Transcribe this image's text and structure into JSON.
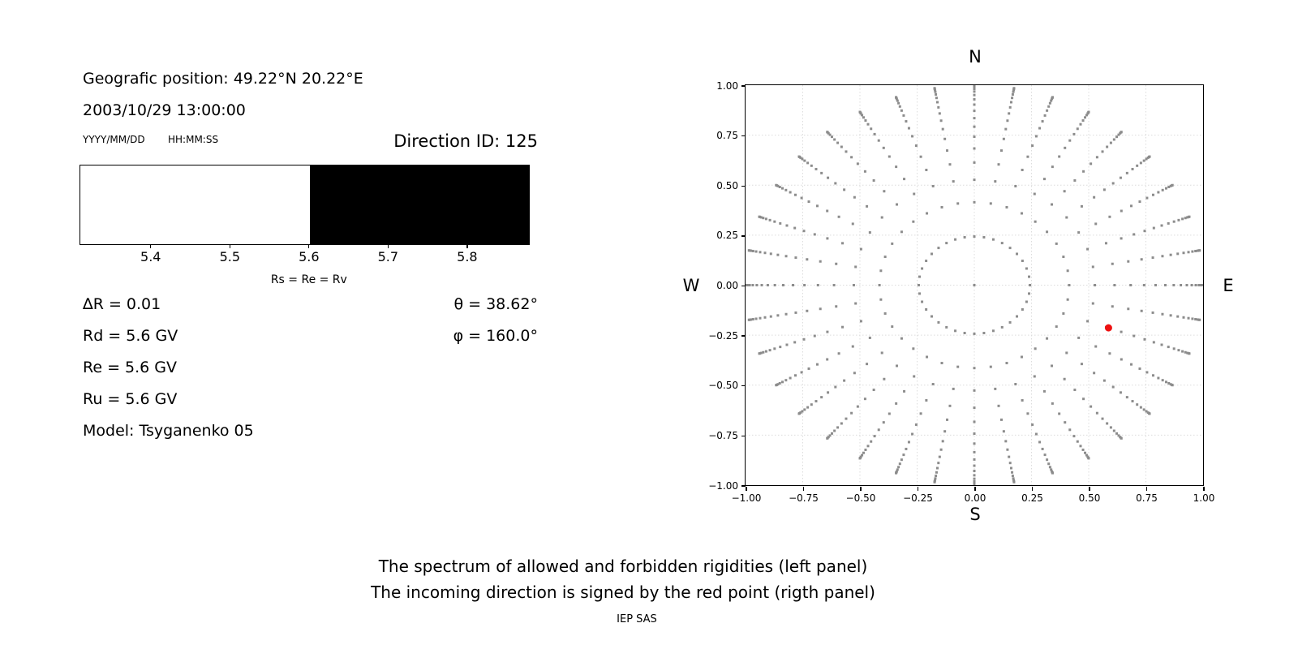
{
  "header": {
    "position": "Geografic position: 49.22°N 20.22°E",
    "datetime": "2003/10/29 13:00:00",
    "date_format_hint": "YYYY/MM/DD",
    "time_format_hint": "HH:MM:SS",
    "direction_id": "Direction ID: 125"
  },
  "spectrum": {
    "x_min": 5.31,
    "x_max": 5.877,
    "boundary_rigidity": 5.6,
    "allowed_color": "#ffffff",
    "forbidden_color": "#000000",
    "ticks": [
      {
        "value": 5.4,
        "label": "5.4"
      },
      {
        "value": 5.5,
        "label": "5.5"
      },
      {
        "value": 5.6,
        "label": "5.6"
      },
      {
        "value": 5.7,
        "label": "5.7"
      },
      {
        "value": 5.8,
        "label": "5.8"
      }
    ],
    "annotation": "Rs = Re = Rv"
  },
  "parameters": {
    "delta_r": "∆R = 0.01",
    "rd": "Rd = 5.6 GV",
    "re": "Re = 5.6 GV",
    "ru": "Ru = 5.6 GV",
    "model": "Model: Tsyganenko 05",
    "theta": "θ = 38.62°",
    "phi": "φ = 160.0°"
  },
  "chart_data": {
    "type": "scatter",
    "description": "Grid of incoming directions: radius = sin(zenith angle), azimuth spokes every 10°, zenith rings at cos(z) = 0.97 … 0.01 step 0.06, plus the zenith point; red dot marks the incoming direction (θ = 38.62°, plotted azimuth 110°).",
    "xlim": [
      -1,
      1
    ],
    "ylim": [
      -1,
      1
    ],
    "x_ticks": [
      {
        "value": -1.0,
        "label": "−1.00"
      },
      {
        "value": -0.75,
        "label": "−0.75"
      },
      {
        "value": -0.5,
        "label": "−0.50"
      },
      {
        "value": -0.25,
        "label": "−0.25"
      },
      {
        "value": 0.0,
        "label": "0.00"
      },
      {
        "value": 0.25,
        "label": "0.25"
      },
      {
        "value": 0.5,
        "label": "0.50"
      },
      {
        "value": 0.75,
        "label": "0.75"
      },
      {
        "value": 1.0,
        "label": "1.00"
      }
    ],
    "y_ticks": [
      {
        "value": 1.0,
        "label": "1.00"
      },
      {
        "value": 0.75,
        "label": "0.75"
      },
      {
        "value": 0.5,
        "label": "0.50"
      },
      {
        "value": 0.25,
        "label": "0.25"
      },
      {
        "value": 0.0,
        "label": "0.00"
      },
      {
        "value": -0.25,
        "label": "−0.25"
      },
      {
        "value": -0.5,
        "label": "−0.50"
      },
      {
        "value": -0.75,
        "label": "−0.75"
      },
      {
        "value": -1.0,
        "label": "−1.00"
      }
    ],
    "compass": {
      "top": "N",
      "bottom": "S",
      "left": "W",
      "right": "E"
    },
    "grid": true,
    "grid_color": "#dcdcdc",
    "direction_grid": {
      "marker_color": "#8c8c8c",
      "marker_size_px": 3,
      "azimuth_step_deg": 10,
      "ring_radii": [
        0.2431,
        0.4146,
        0.5268,
        0.6131,
        0.6834,
        0.7424,
        0.7924,
        0.8352,
        0.8718,
        0.9028,
        0.929,
        0.9507,
        0.9683,
        0.9818,
        0.9915,
        0.9976,
        1.0
      ],
      "center_point": [
        0,
        0
      ]
    },
    "red_point": {
      "x": 0.5866,
      "y": -0.2135,
      "color": "#ee1111",
      "radius_px": 4.5
    }
  },
  "caption": {
    "line1": "The spectrum of allowed and forbidden rigidities (left panel)",
    "line2": "The incoming direction is signed by the red point (rigth panel)",
    "credit": "IEP SAS"
  }
}
